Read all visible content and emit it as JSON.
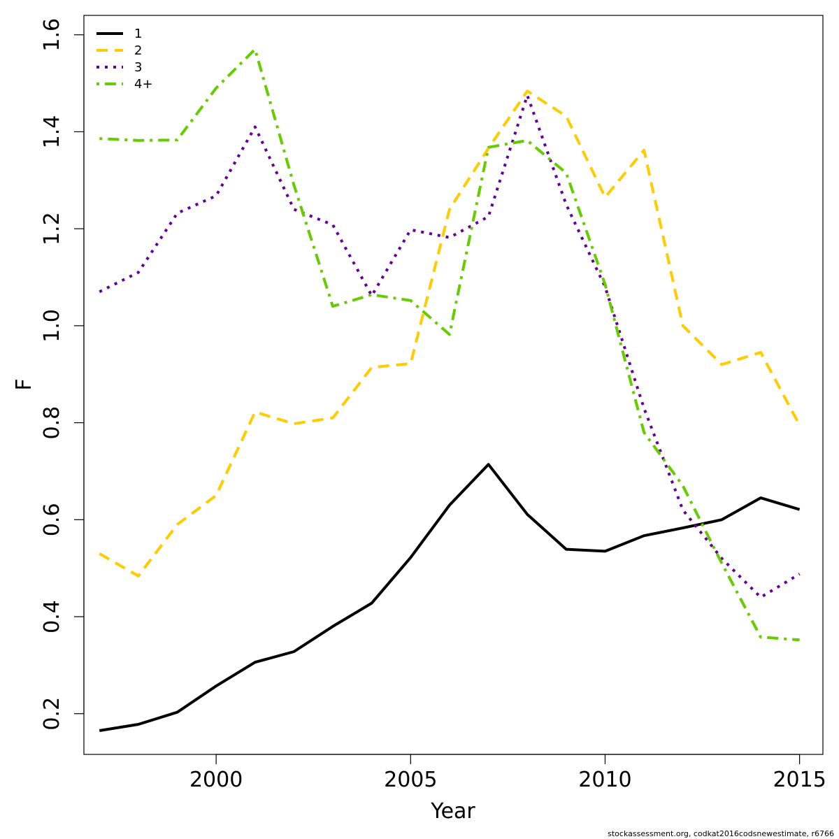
{
  "chart_data": {
    "type": "line",
    "xlabel": "Year",
    "ylabel": "F",
    "xlim": [
      1996.6,
      2015.6
    ],
    "ylim": [
      0.116,
      1.64
    ],
    "x_ticks": [
      2000,
      2005,
      2010,
      2015
    ],
    "x_tick_labels": [
      "2000",
      "2005",
      "2010",
      "2015"
    ],
    "y_ticks": [
      0.2,
      0.4,
      0.6,
      0.8,
      1.0,
      1.2,
      1.4,
      1.6
    ],
    "y_tick_labels": [
      "0.2",
      "0.4",
      "0.6",
      "0.8",
      "1.0",
      "1.2",
      "1.4",
      "1.6"
    ],
    "x": [
      1997,
      1998,
      1999,
      2000,
      2001,
      2002,
      2003,
      2004,
      2005,
      2006,
      2007,
      2008,
      2009,
      2010,
      2011,
      2012,
      2013,
      2014,
      2015
    ],
    "legend_position": "top-left",
    "grid": false,
    "series": [
      {
        "name": "1",
        "color": "#000000",
        "dash": "solid",
        "values": [
          0.165,
          0.178,
          0.203,
          0.257,
          0.306,
          0.328,
          0.38,
          0.428,
          0.522,
          0.63,
          0.714,
          0.611,
          0.539,
          0.535,
          0.567,
          0.583,
          0.6,
          0.645,
          0.621
        ]
      },
      {
        "name": "2",
        "color": "#FFCC00",
        "dash": "dashed",
        "values": [
          0.53,
          0.484,
          0.59,
          0.65,
          0.822,
          0.798,
          0.81,
          0.914,
          0.922,
          1.24,
          1.366,
          1.484,
          1.432,
          1.265,
          1.362,
          1.0,
          0.92,
          0.945,
          0.795
        ]
      },
      {
        "name": "3",
        "color": "#660099",
        "dash": "dotted",
        "values": [
          1.07,
          1.11,
          1.232,
          1.268,
          1.41,
          1.24,
          1.208,
          1.062,
          1.198,
          1.182,
          1.225,
          1.475,
          1.25,
          1.08,
          0.83,
          0.62,
          0.52,
          0.44,
          0.488
        ]
      },
      {
        "name": "4+",
        "color": "#66CC00",
        "dash": "dotdash",
        "values": [
          1.386,
          1.382,
          1.383,
          1.49,
          1.57,
          1.29,
          1.04,
          1.064,
          1.052,
          0.982,
          1.368,
          1.382,
          1.315,
          1.085,
          0.78,
          0.67,
          0.51,
          0.358,
          0.352
        ]
      }
    ]
  },
  "credit": "stockassessment.org, codkat2016codsnewestimate, r6766"
}
